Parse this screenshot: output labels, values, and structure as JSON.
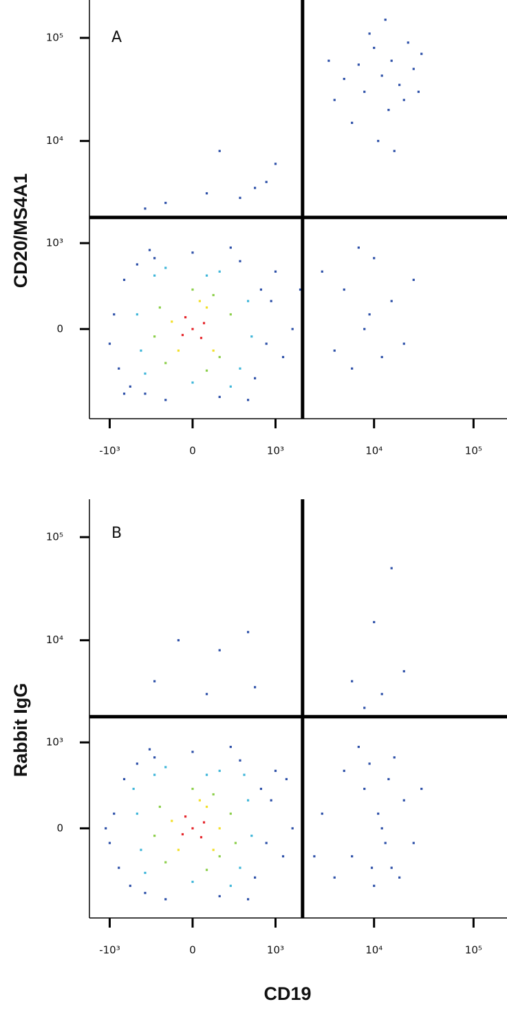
{
  "chart_data": [
    {
      "type": "scatter",
      "panel_label": "A",
      "ylabel": "CD20/MS4A1",
      "xscale": "biexponential",
      "yscale": "biexponential",
      "xlim": [
        -1620,
        217000
      ],
      "ylim": [
        -1090,
        233000
      ],
      "xticks": [
        {
          "value": -1000,
          "label": "-10³"
        },
        0,
        {
          "value": 1000,
          "label": "10³"
        },
        {
          "value": 10000,
          "label": "10⁴"
        },
        {
          "value": 100000,
          "label": "10⁵"
        }
      ],
      "yticks": [
        0,
        {
          "value": 1000,
          "label": "10³"
        },
        {
          "value": 10000,
          "label": "10⁴"
        },
        {
          "value": 100000,
          "label": "10⁵"
        }
      ],
      "gates": {
        "x": 1900,
        "y": 1800
      },
      "series": [
        {
          "color": "#2d50a8",
          "x": [
            -900,
            -800,
            -700,
            -600,
            -500,
            -400,
            -300,
            -200,
            0,
            200,
            400,
            600,
            700,
            800,
            900,
            1000,
            1200,
            -1000,
            300,
            -350,
            500,
            1500,
            1800,
            -700,
            -200,
            100,
            400,
            800,
            -400,
            200,
            1000,
            600,
            12000,
            8000,
            15000,
            20000,
            10000,
            6000,
            25000,
            14000,
            9000,
            30000,
            5000,
            18000,
            11000,
            7000,
            22000,
            4000,
            16000,
            13000,
            28000,
            3500,
            8000,
            5000,
            12000,
            3000,
            15000,
            20000,
            6000,
            10000,
            9000,
            25000,
            4000,
            7000
          ],
          "y": [
            100,
            -300,
            400,
            -500,
            600,
            -600,
            700,
            -700,
            800,
            -650,
            650,
            -400,
            300,
            -100,
            200,
            500,
            -200,
            -100,
            900,
            850,
            -700,
            0,
            300,
            -600,
            2500,
            3100,
            2800,
            4000,
            2200,
            8000,
            6000,
            3500,
            43000,
            30000,
            60000,
            25000,
            80000,
            15000,
            50000,
            20000,
            110000,
            70000,
            40000,
            35000,
            10000,
            55000,
            90000,
            25000,
            8000,
            150000,
            30000,
            60000,
            0,
            300,
            -200,
            500,
            200,
            -100,
            -300,
            700,
            100,
            400,
            -150,
            900
          ]
        },
        {
          "color": "#3fb6d9",
          "x": [
            -500,
            -400,
            -300,
            0,
            200,
            400,
            500,
            -450,
            300,
            -200,
            550,
            100
          ],
          "y": [
            100,
            -350,
            450,
            -450,
            500,
            -300,
            200,
            -150,
            -500,
            550,
            -50,
            450
          ]
        },
        {
          "color": "#8ccf4a",
          "x": [
            -250,
            -200,
            0,
            200,
            300,
            -300,
            100,
            150
          ],
          "y": [
            150,
            -250,
            300,
            -200,
            100,
            -50,
            -320,
            250
          ]
        },
        {
          "color": "#f2df2a",
          "x": [
            -150,
            100,
            150,
            -100,
            50
          ],
          "y": [
            50,
            150,
            -150,
            -150,
            200
          ]
        },
        {
          "color": "#e5262b",
          "x": [
            0,
            -50,
            60,
            80,
            -70
          ],
          "y": [
            0,
            80,
            -60,
            40,
            -40
          ]
        }
      ]
    },
    {
      "type": "scatter",
      "panel_label": "B",
      "ylabel": "Rabbit IgG",
      "xlabel": "CD19",
      "xscale": "biexponential",
      "yscale": "biexponential",
      "xlim": [
        -1620,
        217000
      ],
      "ylim": [
        -1090,
        233000
      ],
      "xticks": [
        {
          "value": -1000,
          "label": "-10³"
        },
        0,
        {
          "value": 1000,
          "label": "10³"
        },
        {
          "value": 10000,
          "label": "10⁴"
        },
        {
          "value": 100000,
          "label": "10⁵"
        }
      ],
      "yticks": [
        0,
        {
          "value": 1000,
          "label": "10³"
        },
        {
          "value": 10000,
          "label": "10⁴"
        },
        {
          "value": 100000,
          "label": "10⁵"
        }
      ],
      "gates": {
        "x": 1900,
        "y": 1800
      },
      "series": [
        {
          "color": "#2d50a8",
          "x": [
            -900,
            -800,
            -700,
            -600,
            -500,
            -400,
            -300,
            -200,
            0,
            200,
            400,
            600,
            700,
            800,
            900,
            1000,
            1200,
            -1000,
            300,
            -350,
            500,
            1500,
            -1100,
            1300,
            -100,
            200,
            500,
            -300,
            100,
            600,
            15000,
            10000,
            12000,
            20000,
            6000,
            8000,
            12000,
            8000,
            15000,
            5000,
            20000,
            10000,
            6000,
            25000,
            9000,
            14000,
            3000,
            18000,
            11000,
            7000,
            30000,
            4000,
            13000,
            16000,
            2500,
            9500
          ],
          "y": [
            100,
            -300,
            400,
            -500,
            600,
            -600,
            700,
            -700,
            800,
            -650,
            650,
            -400,
            300,
            -100,
            200,
            500,
            -200,
            -100,
            900,
            850,
            -700,
            0,
            0,
            400,
            10000,
            8000,
            12000,
            4000,
            3000,
            3500,
            50000,
            15000,
            3000,
            5000,
            4000,
            2200,
            0,
            300,
            -300,
            500,
            200,
            -500,
            -200,
            -100,
            600,
            400,
            100,
            -400,
            100,
            900,
            300,
            -400,
            -100,
            700,
            -200,
            -300
          ]
        },
        {
          "color": "#3fb6d9",
          "x": [
            -500,
            -400,
            -300,
            0,
            200,
            400,
            500,
            -450,
            300,
            -200,
            550,
            100,
            -550,
            450
          ],
          "y": [
            100,
            -350,
            450,
            -450,
            500,
            -300,
            200,
            -150,
            -500,
            550,
            -50,
            450,
            300,
            450
          ]
        },
        {
          "color": "#8ccf4a",
          "x": [
            -250,
            -200,
            0,
            200,
            300,
            -300,
            100,
            150,
            350
          ],
          "y": [
            150,
            -250,
            300,
            -200,
            100,
            -50,
            -320,
            250,
            -100
          ]
        },
        {
          "color": "#f2df2a",
          "x": [
            -150,
            100,
            150,
            -100,
            50,
            200
          ],
          "y": [
            50,
            150,
            -150,
            -150,
            200,
            0
          ]
        },
        {
          "color": "#e5262b",
          "x": [
            0,
            -50,
            60,
            80,
            -70
          ],
          "y": [
            0,
            80,
            -60,
            40,
            -40
          ]
        }
      ]
    }
  ]
}
